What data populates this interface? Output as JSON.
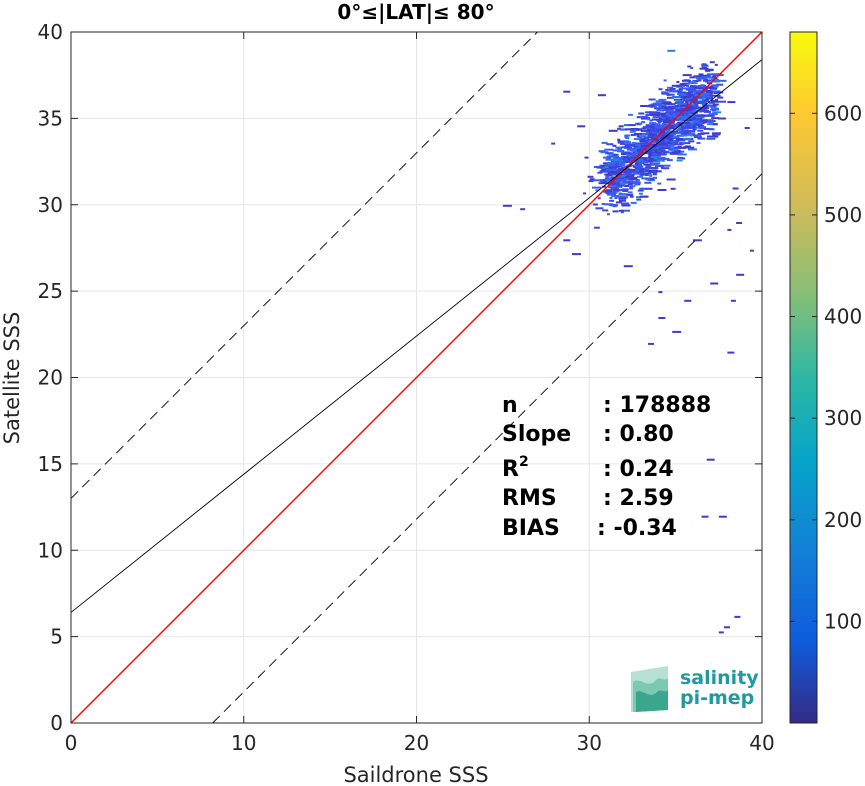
{
  "chart_data": {
    "type": "heatmap",
    "title": "0°≤|LAT|≤ 80°",
    "xlabel": "Saildrone SSS",
    "ylabel": "Satellite SSS",
    "xlim": [
      0,
      40
    ],
    "ylim": [
      0,
      40
    ],
    "xticks": [
      "0",
      "10",
      "20",
      "30",
      "40"
    ],
    "yticks": [
      "0",
      "5",
      "10",
      "15",
      "20",
      "25",
      "30",
      "35",
      "40"
    ],
    "grid": true,
    "colorbar": {
      "range": [
        0,
        680
      ],
      "ticks": [
        "100",
        "200",
        "300",
        "400",
        "500",
        "600"
      ],
      "colormap": "parula"
    },
    "lines": [
      {
        "name": "1:1",
        "slope": 1.0,
        "intercept": 0.0,
        "color": "#ff0000",
        "style": "solid"
      },
      {
        "name": "fit",
        "slope": 0.8,
        "intercept": 6.4,
        "color": "#000000",
        "style": "solid"
      },
      {
        "name": "upper-bound",
        "slope": 1.0,
        "intercept": 13.0,
        "color": "#000000",
        "style": "dashed"
      },
      {
        "name": "lower-bound",
        "slope": 1.0,
        "intercept": -8.2,
        "color": "#000000",
        "style": "dashed"
      }
    ],
    "density_core": {
      "x_range": [
        28,
        37.5
      ],
      "y_range": [
        27,
        39
      ],
      "peak_count": 200
    },
    "stats": [
      {
        "label": "n",
        "value": ": 178888"
      },
      {
        "label": "Slope",
        "value": ": 0.80"
      },
      {
        "label": "R",
        "value": ": 0.24"
      },
      {
        "label": "RMS",
        "value": ": 2.59"
      },
      {
        "label": "BIAS",
        "value": ": -0.34"
      }
    ],
    "r2_sup": "2"
  },
  "logo": {
    "line1": "salinity",
    "line2": "pi-mep"
  }
}
